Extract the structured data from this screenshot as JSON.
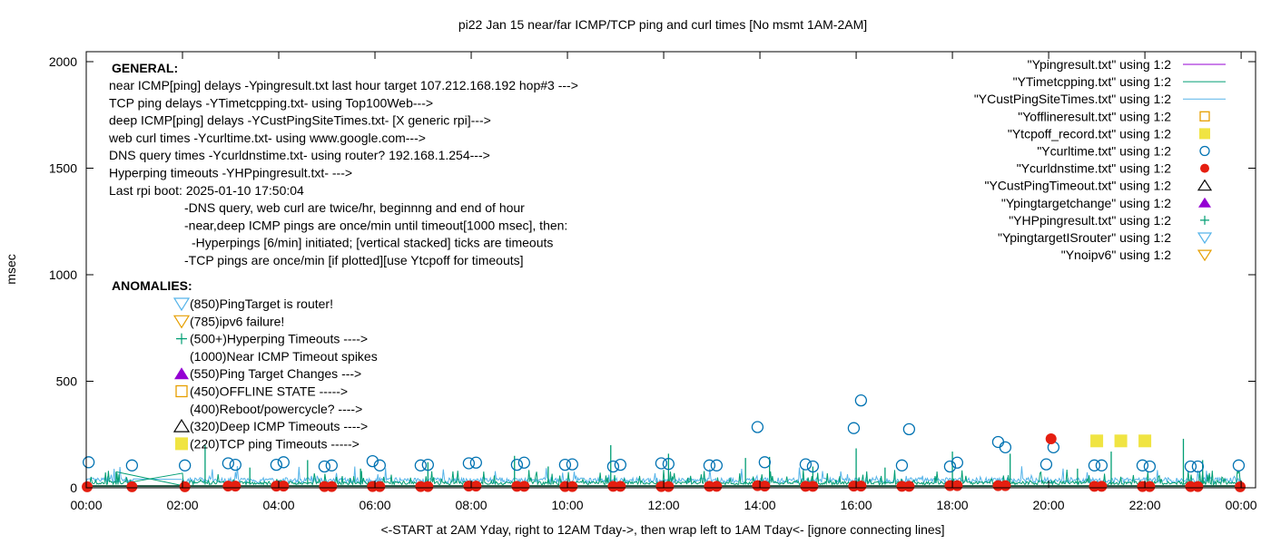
{
  "chart_data": {
    "type": "line",
    "title": "pi22 Jan 15  near/far ICMP/TCP ping and curl times [No msmt 1AM-2AM]",
    "xlabel": "<-START at 2AM Yday, right to 12AM Tday->, then wrap left to 1AM Tday<- [ignore connecting lines]",
    "ylabel": "msec",
    "xlim": [
      0,
      24.3
    ],
    "ylim": [
      0,
      2000
    ],
    "x_ticks": [
      "00:00",
      "02:00",
      "04:00",
      "06:00",
      "08:00",
      "10:00",
      "12:00",
      "14:00",
      "16:00",
      "18:00",
      "20:00",
      "22:00",
      "00:00"
    ],
    "y_ticks": [
      "0",
      "500",
      "1000",
      "1500",
      "2000"
    ],
    "grid": false,
    "legend_placement": "top-right",
    "legend": [
      {
        "label": "\"Ypingresult.txt\" using 1:2",
        "style": "line",
        "color": "#9400d3"
      },
      {
        "label": "\"YTimetcpping.txt\" using 1:2",
        "style": "line",
        "color": "#009e73"
      },
      {
        "label": "\"YCustPingSiteTimes.txt\" using 1:2",
        "style": "line",
        "color": "#56b4e9"
      },
      {
        "label": "\"Yofflineresult.txt\" using 1:2",
        "style": "open-square",
        "color": "#e69f00"
      },
      {
        "label": "\"Ytcpoff_record.txt\" using 1:2",
        "style": "filled-square",
        "color": "#f0e442"
      },
      {
        "label": "\"Ycurltime.txt\" using 1:2",
        "style": "open-circle",
        "color": "#0072b2"
      },
      {
        "label": "\"Ycurldnstime.txt\" using 1:2",
        "style": "filled-circle",
        "color": "#e51e10"
      },
      {
        "label": "\"YCustPingTimeout.txt\" using 1:2",
        "style": "open-triangle",
        "color": "#000000"
      },
      {
        "label": "\"Ypingtargetchange\" using 1:2",
        "style": "filled-triangle",
        "color": "#9400d3"
      },
      {
        "label": "\"YHPpingresult.txt\" using 1:2",
        "style": "plus",
        "color": "#009e73"
      },
      {
        "label": "\"YpingtargetISrouter\" using 1:2",
        "style": "open-down-triangle",
        "color": "#56b4e9"
      },
      {
        "label": "\"Ynoipv6\" using 1:2",
        "style": "open-down-triangle",
        "color": "#e69f00"
      }
    ],
    "series": [
      {
        "name": "\"Ypingresult.txt\" using 1:2",
        "baseline": 8,
        "points": []
      },
      {
        "name": "\"YTimetcpping.txt\" using 1:2",
        "baseline": 15,
        "points": [
          [
            0.62,
            75
          ],
          [
            2.0,
            10
          ],
          [
            2.47,
            200
          ],
          [
            3.4,
            95
          ],
          [
            4.6,
            130
          ],
          [
            5.7,
            90
          ],
          [
            7.1,
            120
          ],
          [
            8.9,
            150
          ],
          [
            9.6,
            100
          ],
          [
            10.9,
            200
          ],
          [
            12.1,
            160
          ],
          [
            13.7,
            140
          ],
          [
            14.2,
            145
          ],
          [
            15.1,
            100
          ],
          [
            16.0,
            185
          ],
          [
            16.6,
            95
          ],
          [
            18.0,
            170
          ],
          [
            19.2,
            160
          ],
          [
            20.6,
            90
          ],
          [
            21.3,
            170
          ],
          [
            22.8,
            230
          ],
          [
            23.2,
            130
          ]
        ]
      },
      {
        "name": "\"YCustPingSiteTimes.txt\" using 1:2",
        "baseline": 35,
        "points": []
      },
      {
        "name": "\"Ytcpoff_record.txt\" using 1:2",
        "points": [
          [
            21.0,
            220
          ],
          [
            21.5,
            220
          ],
          [
            22.0,
            220
          ]
        ]
      },
      {
        "name": "\"Ycurltime.txt\" using 1:2",
        "points": [
          [
            0.05,
            120
          ],
          [
            0.95,
            105
          ],
          [
            2.05,
            105
          ],
          [
            2.95,
            115
          ],
          [
            3.1,
            108
          ],
          [
            3.95,
            108
          ],
          [
            4.1,
            120
          ],
          [
            4.95,
            100
          ],
          [
            5.1,
            105
          ],
          [
            5.95,
            125
          ],
          [
            6.1,
            105
          ],
          [
            6.95,
            105
          ],
          [
            7.1,
            108
          ],
          [
            7.95,
            115
          ],
          [
            8.1,
            118
          ],
          [
            8.95,
            108
          ],
          [
            9.1,
            118
          ],
          [
            9.95,
            108
          ],
          [
            10.1,
            110
          ],
          [
            10.95,
            100
          ],
          [
            11.1,
            108
          ],
          [
            11.95,
            115
          ],
          [
            12.1,
            112
          ],
          [
            12.95,
            105
          ],
          [
            13.1,
            105
          ],
          [
            13.95,
            285
          ],
          [
            14.1,
            120
          ],
          [
            14.95,
            110
          ],
          [
            15.1,
            100
          ],
          [
            15.95,
            280
          ],
          [
            16.1,
            410
          ],
          [
            16.95,
            105
          ],
          [
            17.1,
            275
          ],
          [
            17.95,
            100
          ],
          [
            18.1,
            118
          ],
          [
            18.95,
            215
          ],
          [
            19.1,
            190
          ],
          [
            19.95,
            110
          ],
          [
            20.1,
            190
          ],
          [
            20.95,
            105
          ],
          [
            21.1,
            105
          ],
          [
            21.95,
            105
          ],
          [
            22.1,
            100
          ],
          [
            22.95,
            100
          ],
          [
            23.1,
            100
          ],
          [
            23.95,
            105
          ]
        ]
      },
      {
        "name": "\"Ycurldnstime.txt\" using 1:2",
        "points": [
          [
            0.02,
            5
          ],
          [
            0.95,
            5
          ],
          [
            2.05,
            5
          ],
          [
            2.95,
            8
          ],
          [
            3.1,
            8
          ],
          [
            3.95,
            8
          ],
          [
            4.1,
            8
          ],
          [
            4.95,
            6
          ],
          [
            5.1,
            6
          ],
          [
            5.95,
            6
          ],
          [
            6.1,
            6
          ],
          [
            6.95,
            6
          ],
          [
            7.1,
            6
          ],
          [
            7.95,
            8
          ],
          [
            8.1,
            8
          ],
          [
            8.95,
            7
          ],
          [
            9.1,
            7
          ],
          [
            9.95,
            6
          ],
          [
            10.1,
            6
          ],
          [
            10.95,
            7
          ],
          [
            11.1,
            7
          ],
          [
            11.95,
            6
          ],
          [
            12.1,
            6
          ],
          [
            12.95,
            7
          ],
          [
            13.1,
            7
          ],
          [
            13.95,
            10
          ],
          [
            14.1,
            8
          ],
          [
            14.95,
            7
          ],
          [
            15.1,
            7
          ],
          [
            15.95,
            8
          ],
          [
            16.1,
            8
          ],
          [
            16.95,
            7
          ],
          [
            17.1,
            7
          ],
          [
            17.95,
            10
          ],
          [
            18.1,
            10
          ],
          [
            18.95,
            10
          ],
          [
            19.1,
            10
          ],
          [
            20.05,
            230
          ],
          [
            20.95,
            7
          ],
          [
            21.1,
            7
          ],
          [
            21.95,
            6
          ],
          [
            22.1,
            6
          ],
          [
            22.95,
            6
          ],
          [
            23.1,
            6
          ],
          [
            23.98,
            5
          ]
        ]
      }
    ],
    "annotations": {
      "general_header": "GENERAL:",
      "general_lines": [
        "near ICMP[ping] delays -Ypingresult.txt last hour target 107.212.168.192 hop#3 --->",
        "TCP ping delays -YTimetcpping.txt- using Top100Web--->",
        "deep ICMP[ping] delays -YCustPingSiteTimes.txt- [X generic rpi]--->",
        "web curl times -Ycurltime.txt- using www.google.com--->",
        "DNS query times -Ycurldnstime.txt- using router? 192.168.1.254--->",
        "Hyperping timeouts -YHPpingresult.txt- --->",
        "Last rpi boot: 2025-01-10 17:50:04"
      ],
      "notes": [
        "-DNS query, web curl are twice/hr, beginnng and end of hour",
        "-near,deep ICMP pings are once/min until timeout[1000 msec], then:",
        "  -Hyperpings [6/min] initiated; [vertical stacked] ticks are timeouts",
        "-TCP pings are once/min [if plotted][use Ytcpoff for timeouts]"
      ],
      "anomalies_header": "ANOMALIES:",
      "anomalies": [
        {
          "text": "(850)PingTarget is router!",
          "marker": "open-down-triangle",
          "color": "#56b4e9"
        },
        {
          "text": "(785)ipv6 failure!",
          "marker": "open-down-triangle",
          "color": "#e69f00"
        },
        {
          "text": "(500+)Hyperping Timeouts ---->",
          "marker": "plus",
          "color": "#009e73"
        },
        {
          "text": "(1000)Near ICMP Timeout spikes",
          "marker": "",
          "color": ""
        },
        {
          "text": "(550)Ping Target Changes --->",
          "marker": "filled-triangle",
          "color": "#9400d3"
        },
        {
          "text": "(450)OFFLINE STATE ----->",
          "marker": "open-square",
          "color": "#e69f00"
        },
        {
          "text": "(400)Reboot/powercycle? ---->",
          "marker": "",
          "color": ""
        },
        {
          "text": "(320)Deep ICMP Timeouts ---->",
          "marker": "open-triangle",
          "color": "#000000"
        },
        {
          "text": "(220)TCP ping Timeouts ----->",
          "marker": "filled-square",
          "color": "#f0e442"
        }
      ]
    }
  }
}
